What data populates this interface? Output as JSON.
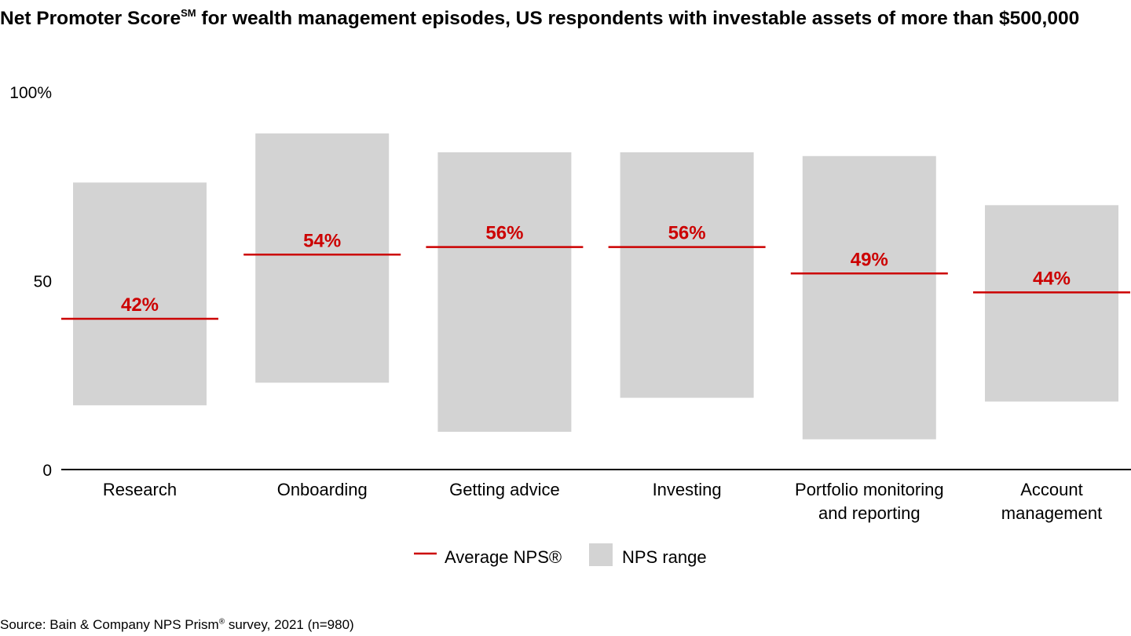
{
  "title": {
    "pre": "Net Promoter Score",
    "sup": "SM",
    "post": " for wealth management episodes, US respondents with investable assets of more than $500,000"
  },
  "source": {
    "pre": "Source: Bain & Company NPS Prism",
    "sup": "®",
    "post": " survey, 2021 (n=980)"
  },
  "chart_data": {
    "type": "range-bar",
    "categories": [
      [
        "Research"
      ],
      [
        "Onboarding"
      ],
      [
        "Getting advice"
      ],
      [
        "Investing"
      ],
      [
        "Portfolio monitoring",
        "and reporting"
      ],
      [
        "Account",
        "management"
      ]
    ],
    "series": [
      {
        "name": "NPS range",
        "low": [
          17,
          23,
          10,
          19,
          8,
          18
        ],
        "high": [
          76,
          89,
          84,
          84,
          83,
          70
        ]
      },
      {
        "name": "Average NPS®",
        "values": [
          42,
          54,
          56,
          56,
          49,
          44
        ],
        "labels": [
          "42%",
          "54%",
          "56%",
          "56%",
          "49%",
          "44%"
        ]
      }
    ],
    "yticks": [
      "0",
      "50",
      "100%"
    ],
    "ytick_values": [
      0,
      50,
      100
    ],
    "ylim": [
      0,
      100
    ],
    "grid": false,
    "legend": {
      "position": "bottom",
      "items": [
        "Average NPS®",
        "NPS range"
      ]
    },
    "colors": {
      "range": "#d3d3d3",
      "average": "#cc0000",
      "label": "#cc0000",
      "axis": "#000000"
    }
  }
}
